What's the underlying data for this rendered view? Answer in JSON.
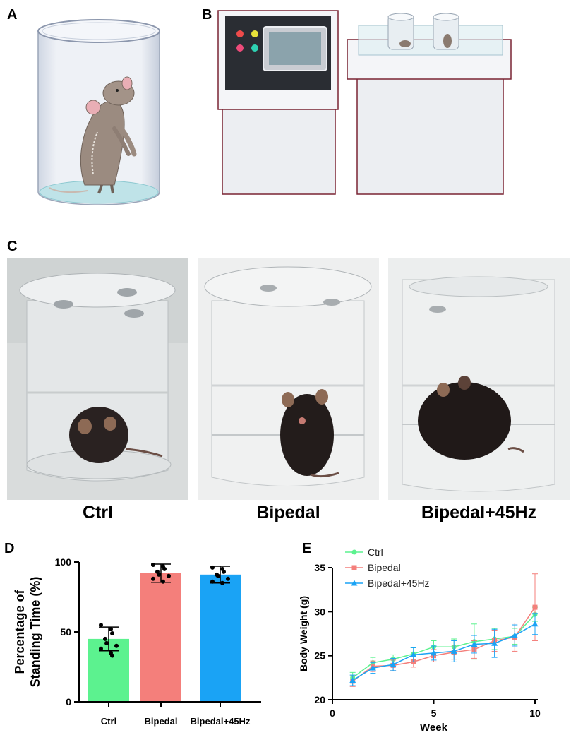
{
  "panels": {
    "a": "A",
    "b": "B",
    "c": "C",
    "d": "D",
    "e": "E"
  },
  "photo_captions": [
    "Ctrl",
    "Bipedal",
    "Bipedal+45Hz"
  ],
  "colors": {
    "ctrl": "#5cf28f",
    "bipedal": "#f47f7b",
    "bipedal45": "#1aa3f5"
  },
  "chart_data": [
    {
      "type": "bar",
      "panel": "D",
      "ylabel_line1": "Percentage of",
      "ylabel_line2": "Standing Time (%)",
      "xlabel": "",
      "ylim": [
        0,
        100
      ],
      "yticks": [
        "0",
        "50",
        "100"
      ],
      "categories": [
        "Ctrl",
        "Bipedal",
        "Bipedal+45Hz"
      ],
      "values": [
        45,
        92,
        91
      ],
      "errors": [
        8.5,
        6.5,
        6
      ],
      "points": [
        [
          55,
          52,
          49,
          45,
          42,
          40,
          38,
          35,
          33
        ],
        [
          98,
          97,
          95,
          93,
          91,
          90,
          88,
          86
        ],
        [
          96,
          95,
          93,
          91,
          90,
          88,
          86,
          85
        ]
      ]
    },
    {
      "type": "line",
      "panel": "E",
      "xlabel": "Week",
      "ylabel": "Body Weight (g)",
      "xlim": [
        0,
        10
      ],
      "ylim": [
        20,
        35
      ],
      "xticks": [
        "0",
        "5",
        "10"
      ],
      "yticks": [
        "20",
        "25",
        "30",
        "35"
      ],
      "x": [
        1,
        2,
        3,
        4,
        5,
        6,
        7,
        8,
        9,
        10
      ],
      "series": [
        {
          "name": "Ctrl",
          "marker": "circle",
          "values": [
            22.5,
            24.2,
            24.6,
            25.2,
            26.0,
            26.0,
            26.6,
            26.9,
            27.2,
            29.7
          ],
          "errors": [
            0.6,
            0.6,
            0.5,
            0.7,
            0.7,
            0.9,
            2.0,
            1.2,
            0.9,
            0.8
          ]
        },
        {
          "name": "Bipedal",
          "marker": "square",
          "values": [
            22.1,
            23.8,
            23.9,
            24.3,
            25.0,
            25.4,
            25.7,
            26.7,
            27.1,
            30.5
          ],
          "errors": [
            0.6,
            0.6,
            0.6,
            0.6,
            0.7,
            0.8,
            1.0,
            1.2,
            1.6,
            3.8
          ]
        },
        {
          "name": "Bipedal+45Hz",
          "marker": "triangle",
          "values": [
            22.2,
            23.6,
            24.0,
            25.1,
            25.3,
            25.5,
            26.3,
            26.4,
            27.3,
            28.6
          ],
          "errors": [
            0.6,
            0.6,
            0.7,
            0.8,
            0.8,
            1.2,
            1.0,
            1.6,
            1.2,
            1.2
          ]
        }
      ],
      "legend": "top-left"
    }
  ]
}
